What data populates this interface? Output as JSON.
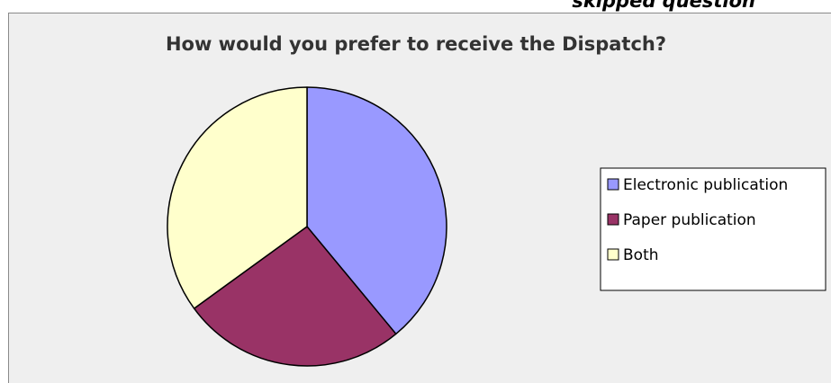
{
  "header": {
    "caption": "skipped question"
  },
  "colors": {
    "electronic": "#9999ff",
    "paper": "#993366",
    "both": "#ffffcc",
    "background": "#efefef",
    "outline": "#000000"
  },
  "chart_data": {
    "type": "pie",
    "title": "How would you prefer to receive the Dispatch?",
    "categories": [
      "Electronic publication",
      "Paper publication",
      "Both"
    ],
    "values": [
      39,
      26,
      35
    ],
    "legend_position": "right",
    "legend": [
      {
        "label": "Electronic publication",
        "color": "#9999ff"
      },
      {
        "label": "Paper publication",
        "color": "#993366"
      },
      {
        "label": "Both",
        "color": "#ffffcc"
      }
    ]
  }
}
